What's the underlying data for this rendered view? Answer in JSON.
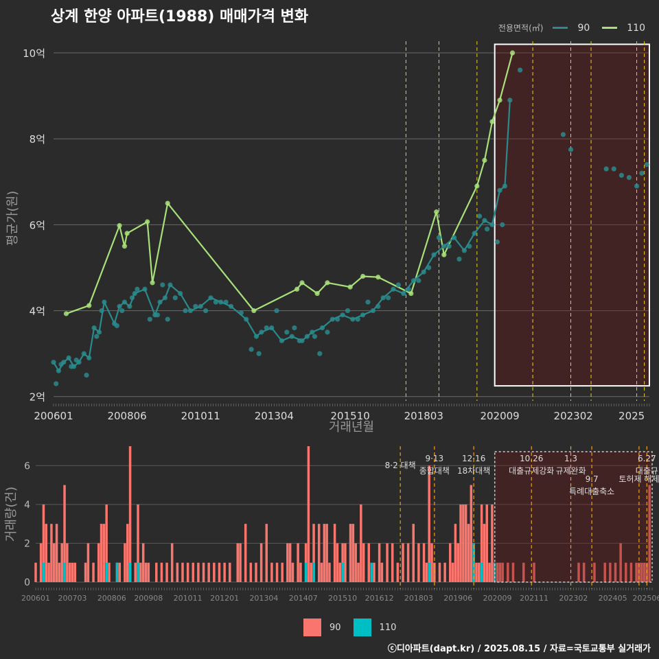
{
  "title": "상계 한양 아파트(1988) 매매가격 변화",
  "footer": "ⓒ디아파트(dapt.kr) / 2025.08.15 / 자료=국토교통부 실거래가",
  "legend": {
    "label": "전용면적(㎡)",
    "items": [
      {
        "name": "90",
        "color": "#2a8a8c"
      },
      {
        "name": "110",
        "color": "#a8e07a"
      }
    ]
  },
  "bar_legend": [
    {
      "name": "90",
      "color": "#f8766d"
    },
    {
      "name": "110",
      "color": "#00bfc4"
    }
  ],
  "chart_data": [
    {
      "type": "line",
      "title": "상계 한양 아파트(1988) 매매가격 변화",
      "xlabel": "거래년월",
      "ylabel": "평균가(원)",
      "ylim": [
        1.9,
        10.4
      ],
      "yticks": [
        {
          "v": 2,
          "label": "2억"
        },
        {
          "v": 4,
          "label": "4억"
        },
        {
          "v": 6,
          "label": "6억"
        },
        {
          "v": 8,
          "label": "8억"
        },
        {
          "v": 10,
          "label": "10억"
        }
      ],
      "xticks": [
        "200601",
        "200806",
        "201011",
        "201304",
        "201510",
        "201803",
        "202009",
        "202302",
        "2025"
      ],
      "policy_lines": [
        "2017-08",
        "2018-09",
        "2019-12",
        "2021-10",
        "2023-01",
        "2023-09",
        "2025-03",
        "2025-06"
      ],
      "highlight_box": {
        "from": "2020-07",
        "to": "2025-08",
        "ymin": 2.25,
        "ymax": 10.2
      },
      "series": [
        {
          "name": "110",
          "color": "#a8e07a",
          "points": [
            [
              "2006-06",
              3.93
            ],
            [
              "2007-03",
              4.12
            ],
            [
              "2008-03",
              5.98
            ],
            [
              "2008-05",
              5.5
            ],
            [
              "2008-06",
              5.8
            ],
            [
              "2009-02",
              6.07
            ],
            [
              "2009-04",
              4.65
            ],
            [
              "2009-10",
              6.5
            ],
            [
              "2012-08",
              4.0
            ],
            [
              "2014-01",
              4.5
            ],
            [
              "2014-03",
              4.65
            ],
            [
              "2014-09",
              4.4
            ],
            [
              "2015-01",
              4.65
            ],
            [
              "2015-10",
              4.55
            ],
            [
              "2016-03",
              4.8
            ],
            [
              "2016-09",
              4.78
            ],
            [
              "2017-10",
              4.4
            ],
            [
              "2018-08",
              6.3
            ],
            [
              "2018-11",
              5.3
            ],
            [
              "2019-12",
              6.9
            ],
            [
              "2020-03",
              7.5
            ],
            [
              "2020-06",
              8.4
            ],
            [
              "2020-09",
              8.9
            ],
            [
              "2021-02",
              10.0
            ]
          ]
        },
        {
          "name": "90",
          "color": "#2a8a8c",
          "points": [
            [
              "2006-01",
              2.8
            ],
            [
              "2006-03",
              2.6
            ],
            [
              "2006-05",
              2.8
            ],
            [
              "2006-07",
              2.9
            ],
            [
              "2006-09",
              2.7
            ],
            [
              "2006-11",
              2.8
            ],
            [
              "2007-01",
              3.0
            ],
            [
              "2007-03",
              2.9
            ],
            [
              "2007-05",
              3.6
            ],
            [
              "2007-07",
              3.5
            ],
            [
              "2007-09",
              4.2
            ],
            [
              "2008-01",
              3.7
            ],
            [
              "2008-03",
              4.1
            ],
            [
              "2008-05",
              4.2
            ],
            [
              "2008-07",
              4.1
            ],
            [
              "2008-09",
              4.4
            ],
            [
              "2009-01",
              4.5
            ],
            [
              "2009-05",
              3.9
            ],
            [
              "2009-07",
              4.2
            ],
            [
              "2009-09",
              4.3
            ],
            [
              "2009-11",
              4.6
            ],
            [
              "2010-03",
              4.4
            ],
            [
              "2010-07",
              4.0
            ],
            [
              "2010-11",
              4.1
            ],
            [
              "2011-03",
              4.3
            ],
            [
              "2011-07",
              4.2
            ],
            [
              "2011-11",
              4.1
            ],
            [
              "2012-05",
              3.8
            ],
            [
              "2012-09",
              3.4
            ],
            [
              "2012-11",
              3.5
            ],
            [
              "2013-03",
              3.6
            ],
            [
              "2013-07",
              3.3
            ],
            [
              "2013-11",
              3.4
            ],
            [
              "2014-03",
              3.3
            ],
            [
              "2014-07",
              3.5
            ],
            [
              "2014-11",
              3.6
            ],
            [
              "2015-03",
              3.8
            ],
            [
              "2015-07",
              3.9
            ],
            [
              "2015-11",
              3.8
            ],
            [
              "2016-03",
              3.9
            ],
            [
              "2016-07",
              4.0
            ],
            [
              "2016-11",
              4.3
            ],
            [
              "2017-03",
              4.5
            ],
            [
              "2017-07",
              4.4
            ],
            [
              "2017-11",
              4.7
            ],
            [
              "2018-03",
              4.9
            ],
            [
              "2018-07",
              5.3
            ],
            [
              "2018-11",
              5.5
            ],
            [
              "2019-03",
              5.7
            ],
            [
              "2019-07",
              5.4
            ],
            [
              "2019-11",
              5.8
            ],
            [
              "2020-03",
              6.1
            ],
            [
              "2020-06",
              6.0
            ],
            [
              "2020-09",
              6.8
            ],
            [
              "2020-11",
              6.9
            ],
            [
              "2021-01",
              8.9
            ]
          ]
        },
        {
          "name": "90-scatter",
          "color": "#2a8a8c",
          "mode": "markers",
          "points": [
            [
              "2006-02",
              2.3
            ],
            [
              "2006-04",
              2.75
            ],
            [
              "2006-08",
              2.7
            ],
            [
              "2006-10",
              2.85
            ],
            [
              "2007-02",
              2.5
            ],
            [
              "2007-06",
              3.4
            ],
            [
              "2007-08",
              4.0
            ],
            [
              "2008-02",
              3.65
            ],
            [
              "2008-04",
              4.0
            ],
            [
              "2008-08",
              4.3
            ],
            [
              "2008-10",
              4.5
            ],
            [
              "2009-03",
              3.8
            ],
            [
              "2009-06",
              3.9
            ],
            [
              "2009-08",
              4.6
            ],
            [
              "2009-10",
              3.8
            ],
            [
              "2010-01",
              4.3
            ],
            [
              "2010-05",
              4.0
            ],
            [
              "2010-09",
              4.1
            ],
            [
              "2011-01",
              4.0
            ],
            [
              "2011-05",
              4.2
            ],
            [
              "2011-09",
              4.2
            ],
            [
              "2012-03",
              3.95
            ],
            [
              "2012-07",
              3.1
            ],
            [
              "2012-10",
              3.0
            ],
            [
              "2013-01",
              3.6
            ],
            [
              "2013-05",
              4.0
            ],
            [
              "2013-09",
              3.5
            ],
            [
              "2013-12",
              3.6
            ],
            [
              "2014-02",
              3.3
            ],
            [
              "2014-05",
              3.4
            ],
            [
              "2014-08",
              3.4
            ],
            [
              "2014-10",
              3.0
            ],
            [
              "2015-01",
              3.5
            ],
            [
              "2015-05",
              3.8
            ],
            [
              "2015-09",
              4.0
            ],
            [
              "2016-01",
              3.8
            ],
            [
              "2016-05",
              4.2
            ],
            [
              "2016-09",
              4.1
            ],
            [
              "2017-01",
              4.3
            ],
            [
              "2017-05",
              4.6
            ],
            [
              "2017-09",
              4.5
            ],
            [
              "2018-01",
              4.7
            ],
            [
              "2018-05",
              5.0
            ],
            [
              "2018-09",
              5.7
            ],
            [
              "2019-01",
              5.5
            ],
            [
              "2019-05",
              5.2
            ],
            [
              "2019-09",
              5.5
            ],
            [
              "2020-01",
              6.2
            ],
            [
              "2020-04",
              5.9
            ],
            [
              "2020-08",
              5.6
            ],
            [
              "2020-10",
              6.0
            ],
            [
              "2021-05",
              9.6
            ],
            [
              "2022-10",
              8.1
            ],
            [
              "2023-01",
              7.75
            ],
            [
              "2024-03",
              7.3
            ],
            [
              "2024-06",
              7.3
            ],
            [
              "2024-09",
              7.15
            ],
            [
              "2024-12",
              7.1
            ],
            [
              "2025-03",
              6.9
            ],
            [
              "2025-05",
              7.2
            ],
            [
              "2025-07",
              7.4
            ]
          ]
        }
      ]
    },
    {
      "type": "bar",
      "ylabel": "거래량(건)",
      "ylim": [
        0,
        7
      ],
      "yticks": [
        0,
        2,
        4,
        6
      ],
      "xticks": [
        "200601",
        "200703",
        "200806",
        "200908",
        "201011",
        "201201",
        "201304",
        "201407",
        "201510",
        "201612",
        "201803",
        "201906",
        "202009",
        "202111",
        "202302",
        "202405",
        "202506"
      ],
      "annotations": [
        {
          "date": "2017-08",
          "lines": [
            "8·2 대책"
          ]
        },
        {
          "date": "2018-09",
          "lines": [
            "9·13",
            "종합대책"
          ]
        },
        {
          "date": "2019-12",
          "lines": [
            "12·16",
            "18차대책"
          ]
        },
        {
          "date": "2021-10",
          "lines": [
            "10.26",
            "대출규제강화"
          ]
        },
        {
          "date": "2023-01",
          "lines": [
            "1.3",
            "규제완화"
          ]
        },
        {
          "date": "2023-09",
          "lines": [
            "9.7",
            "특례대출축소"
          ]
        },
        {
          "date": "2025-03",
          "lines": [
            "토허제 해제"
          ]
        },
        {
          "date": "2025-06",
          "lines": [
            "6.27",
            "대출규"
          ]
        }
      ],
      "highlight_box": {
        "from": "2020-08",
        "to": "2025-08"
      },
      "series": [
        {
          "name": "90",
          "color": "#f8766d",
          "values_by_month": {
            "2006-01": 1,
            "2006-03": 2,
            "2006-04": 4,
            "2006-05": 3,
            "2006-06": 1,
            "2006-07": 3,
            "2006-08": 2,
            "2006-09": 3,
            "2006-10": 1,
            "2006-11": 2,
            "2006-12": 5,
            "2007-01": 2,
            "2007-02": 1,
            "2007-03": 1,
            "2007-04": 1,
            "2007-08": 1,
            "2007-09": 2,
            "2007-11": 1,
            "2008-01": 2,
            "2008-02": 3,
            "2008-03": 3,
            "2008-04": 4,
            "2008-05": 1,
            "2008-08": 1,
            "2008-09": 1,
            "2008-11": 2,
            "2008-12": 3,
            "2009-01": 7,
            "2009-03": 1,
            "2009-04": 4,
            "2009-05": 1,
            "2009-06": 2,
            "2009-07": 1,
            "2009-08": 1,
            "2009-11": 1,
            "2010-01": 1,
            "2010-03": 1,
            "2010-05": 2,
            "2010-07": 1,
            "2010-09": 1,
            "2010-11": 1,
            "2011-01": 1,
            "2011-03": 1,
            "2011-05": 1,
            "2011-07": 1,
            "2011-09": 1,
            "2011-11": 1,
            "2012-01": 1,
            "2012-03": 1,
            "2012-06": 2,
            "2012-07": 2,
            "2012-09": 3,
            "2012-11": 1,
            "2013-01": 1,
            "2013-03": 2,
            "2013-05": 3,
            "2013-07": 1,
            "2013-09": 1,
            "2013-11": 1,
            "2014-01": 2,
            "2014-02": 2,
            "2014-03": 1,
            "2014-05": 2,
            "2014-06": 1,
            "2014-08": 2,
            "2014-09": 7,
            "2014-10": 1,
            "2014-11": 3,
            "2015-01": 3,
            "2015-02": 1,
            "2015-03": 3,
            "2015-04": 3,
            "2015-05": 1,
            "2015-07": 3,
            "2015-08": 2,
            "2015-09": 1,
            "2015-10": 2,
            "2015-11": 2,
            "2016-01": 3,
            "2016-02": 3,
            "2016-03": 2,
            "2016-04": 1,
            "2016-05": 4,
            "2016-06": 2,
            "2016-08": 2,
            "2016-10": 1,
            "2016-12": 2,
            "2017-01": 1,
            "2017-03": 2,
            "2017-05": 2,
            "2017-07": 1,
            "2017-09": 2,
            "2017-11": 2,
            "2018-01": 3,
            "2018-03": 2,
            "2018-05": 2,
            "2018-06": 1,
            "2018-07": 6,
            "2018-08": 2,
            "2018-09": 1,
            "2018-11": 1,
            "2019-01": 1,
            "2019-03": 2,
            "2019-04": 1,
            "2019-05": 3,
            "2019-06": 2,
            "2019-07": 4,
            "2019-08": 4,
            "2019-09": 4,
            "2019-10": 3,
            "2019-11": 5,
            "2019-12": 2,
            "2020-01": 1,
            "2020-02": 1,
            "2020-03": 4,
            "2020-04": 3,
            "2020-05": 4,
            "2020-06": 1,
            "2020-07": 4,
            "2020-08": 1,
            "2020-09": 1,
            "2020-10": 1,
            "2020-11": 1,
            "2021-01": 1,
            "2021-03": 1,
            "2021-07": 1,
            "2021-11": 1,
            "2023-04": 1,
            "2023-06": 1,
            "2023-10": 1,
            "2024-02": 1,
            "2024-04": 1,
            "2024-06": 1,
            "2024-08": 2,
            "2024-10": 1,
            "2024-12": 1,
            "2025-02": 1,
            "2025-03": 1,
            "2025-04": 1,
            "2025-05": 1,
            "2025-06": 1,
            "2025-07": 5
          }
        },
        {
          "name": "110",
          "color": "#00bfc4",
          "values_by_month": {
            "2006-04": 1,
            "2006-12": 1,
            "2008-04": 1,
            "2008-08": 1,
            "2009-01": 1,
            "2009-04": 1,
            "2014-08": 1,
            "2014-11": 1,
            "2015-10": 1,
            "2016-09": 1,
            "2018-07": 1,
            "2019-12": 2,
            "2020-03": 1,
            "2020-08": 1
          }
        }
      ]
    }
  ]
}
